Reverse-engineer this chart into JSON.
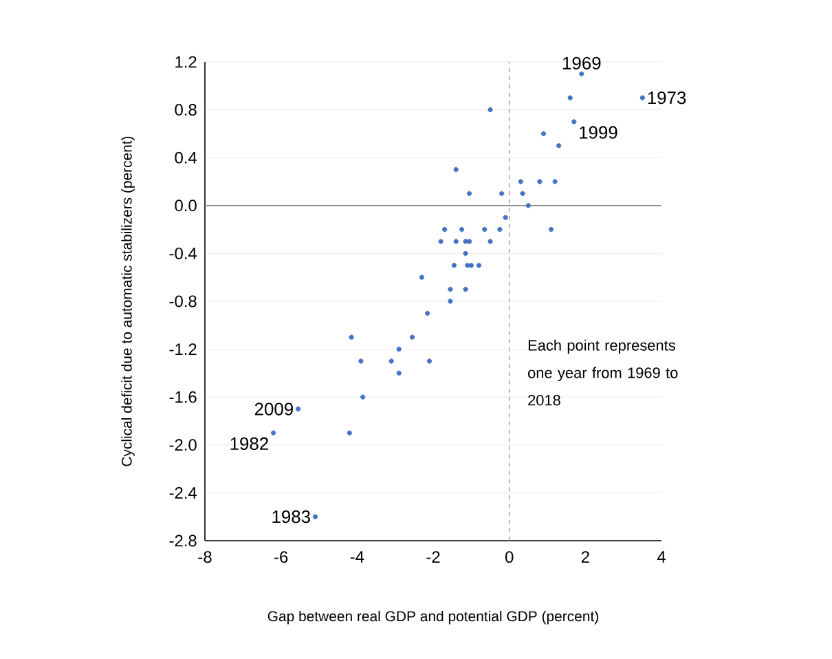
{
  "chart_data": {
    "type": "scatter",
    "xlabel": "Gap between real GDP and potential GDP (percent)",
    "ylabel": "Cyclical deficit due to automatic stabilizers (percent)",
    "x": [
      1.9,
      1.6,
      3.5,
      1.7,
      0.9,
      1.3,
      -0.5,
      -1.4,
      0.3,
      0.8,
      1.2,
      -1.05,
      -0.2,
      0.35,
      0.5,
      -0.1,
      -1.7,
      -1.25,
      -0.65,
      -0.25,
      1.1,
      -1.8,
      -1.4,
      -1.15,
      -1.05,
      -0.5,
      -1.15,
      -1.45,
      -1.1,
      -1.0,
      -0.8,
      -2.3,
      -1.55,
      -1.15,
      -1.55,
      -2.15,
      -4.15,
      -2.55,
      -2.9,
      -3.9,
      -3.1,
      -2.1,
      -2.9,
      -3.85,
      -5.55,
      -6.2,
      -4.2,
      -5.1
    ],
    "series": [
      {
        "color": "#4472c4",
        "values": [
          1.1,
          0.9,
          0.9,
          0.7,
          0.6,
          0.5,
          0.8,
          0.3,
          0.2,
          0.2,
          0.2,
          0.1,
          0.1,
          0.1,
          0.0,
          -0.1,
          -0.2,
          -0.2,
          -0.2,
          -0.2,
          -0.2,
          -0.3,
          -0.3,
          -0.3,
          -0.3,
          -0.3,
          -0.4,
          -0.5,
          -0.5,
          -0.5,
          -0.5,
          -0.6,
          -0.7,
          -0.7,
          -0.8,
          -0.9,
          -1.1,
          -1.1,
          -1.2,
          -1.3,
          -1.3,
          -1.3,
          -1.4,
          -1.6,
          -1.7,
          -1.9,
          -1.9,
          -2.6
        ]
      }
    ],
    "xlim": [
      -8,
      4
    ],
    "ylim": [
      -2.8,
      1.2
    ],
    "xticks": [
      -8,
      -6,
      -4,
      -2,
      0,
      2,
      4
    ],
    "yticks": [
      {
        "value": -2.8,
        "label": "-2.8"
      },
      {
        "value": -2.4,
        "label": "-2.4"
      },
      {
        "value": -2.0,
        "label": "-2.0"
      },
      {
        "value": -1.6,
        "label": "-1.6"
      },
      {
        "value": -1.2,
        "label": "-1.2"
      },
      {
        "value": -0.8,
        "label": "-0.8"
      },
      {
        "value": -0.4,
        "label": "-0.4"
      },
      {
        "value": 0,
        "label": "0.0"
      },
      {
        "value": 0.4,
        "label": "0.4"
      },
      {
        "value": 0.8,
        "label": "0.8"
      },
      {
        "value": 1.2,
        "label": "1.2"
      }
    ],
    "grid": "y",
    "marker": "circle",
    "ref_lines": [
      {
        "axis": "x",
        "value": 0,
        "color": "#a6a6a6",
        "line_style": "dashed"
      },
      {
        "axis": "y",
        "value": 0,
        "color": "#808080",
        "line_style": "solid"
      }
    ],
    "annotations": [
      {
        "text": "1969",
        "x": 1.9,
        "y": 1.1
      },
      {
        "text": "1973",
        "x": 3.5,
        "y": 0.9
      },
      {
        "text": "1999",
        "x": 1.7,
        "y": 0.7
      },
      {
        "text": "2009",
        "x": -5.55,
        "y": -1.7
      },
      {
        "text": "1982",
        "x": -6.2,
        "y": -1.9
      },
      {
        "text": "1983",
        "x": -5.1,
        "y": -2.6
      },
      "Each point represents one year from 1969 to 2018"
    ]
  }
}
